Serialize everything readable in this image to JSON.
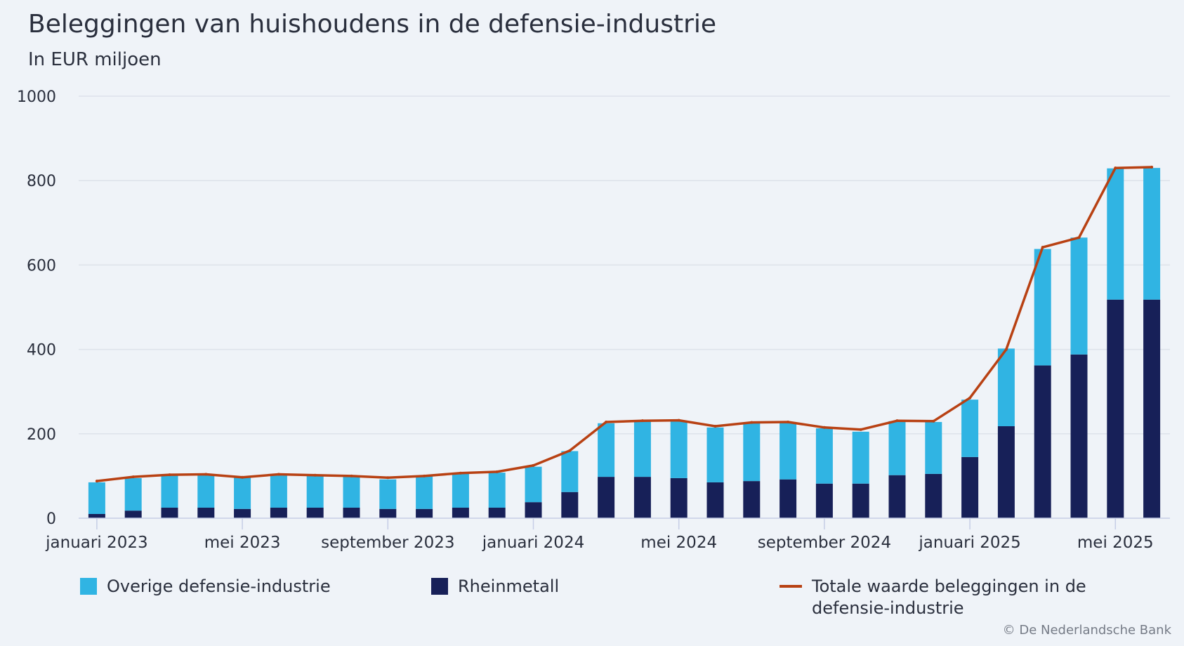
{
  "chart_data": {
    "type": "bar",
    "title": "Beleggingen van huishoudens in de defensie-industrie",
    "subtitle": "In EUR miljoen",
    "xlabel": "",
    "ylabel": "",
    "ylim": [
      0,
      1000
    ],
    "yticks": [
      "0",
      "200",
      "400",
      "600",
      "800",
      "1000"
    ],
    "grid": true,
    "stacked": true,
    "months": [
      "jan 2023",
      "feb 2023",
      "mrt 2023",
      "apr 2023",
      "mei 2023",
      "jun 2023",
      "jul 2023",
      "aug 2023",
      "sep 2023",
      "okt 2023",
      "nov 2023",
      "dec 2023",
      "jan 2024",
      "feb 2024",
      "mrt 2024",
      "apr 2024",
      "mei 2024",
      "jun 2024",
      "jul 2024",
      "aug 2024",
      "sep 2024",
      "okt 2024",
      "nov 2024",
      "dec 2024",
      "jan 2025",
      "feb 2025",
      "mrt 2025",
      "apr 2025",
      "mei 2025",
      "jun 2025"
    ],
    "xtick_labels": [
      {
        "index": 0,
        "label": "januari 2023"
      },
      {
        "index": 4,
        "label": "mei 2023"
      },
      {
        "index": 8,
        "label": "september 2023"
      },
      {
        "index": 12,
        "label": "januari 2024"
      },
      {
        "index": 16,
        "label": "mei 2024"
      },
      {
        "index": 20,
        "label": "september 2024"
      },
      {
        "index": 24,
        "label": "januari 2025"
      },
      {
        "index": 28,
        "label": "mei 2025"
      }
    ],
    "series": [
      {
        "name": "Rheinmetall",
        "kind": "bar",
        "color": "#172058",
        "values": [
          10,
          18,
          25,
          25,
          22,
          25,
          25,
          25,
          22,
          22,
          25,
          25,
          38,
          62,
          98,
          98,
          95,
          85,
          88,
          92,
          82,
          82,
          102,
          105,
          145,
          218,
          362,
          388,
          518,
          518
        ]
      },
      {
        "name": "Overige defensie-industrie",
        "kind": "bar",
        "color": "#30b4e3",
        "values": [
          75,
          77,
          77,
          77,
          75,
          77,
          75,
          75,
          70,
          78,
          82,
          83,
          84,
          97,
          127,
          132,
          135,
          130,
          138,
          136,
          131,
          123,
          128,
          123,
          136,
          184,
          276,
          277,
          311,
          312
        ]
      },
      {
        "name": "Totale waarde beleggingen in de defensie-industrie",
        "kind": "line",
        "color": "#b84113",
        "values": [
          88,
          98,
          103,
          104,
          97,
          104,
          102,
          100,
          96,
          100,
          107,
          110,
          125,
          160,
          228,
          231,
          232,
          218,
          227,
          228,
          215,
          210,
          231,
          230,
          285,
          400,
          642,
          665,
          830,
          832
        ]
      }
    ]
  },
  "legend": [
    {
      "label": "Overige defensie-industrie",
      "color": "#30b4e3"
    },
    {
      "label": "Rheinmetall",
      "color": "#172058"
    },
    {
      "label": "Totale waarde beleggingen in de defensie-industrie",
      "color": "#b84113"
    }
  ],
  "credit": "© De Nederlandsche Bank"
}
